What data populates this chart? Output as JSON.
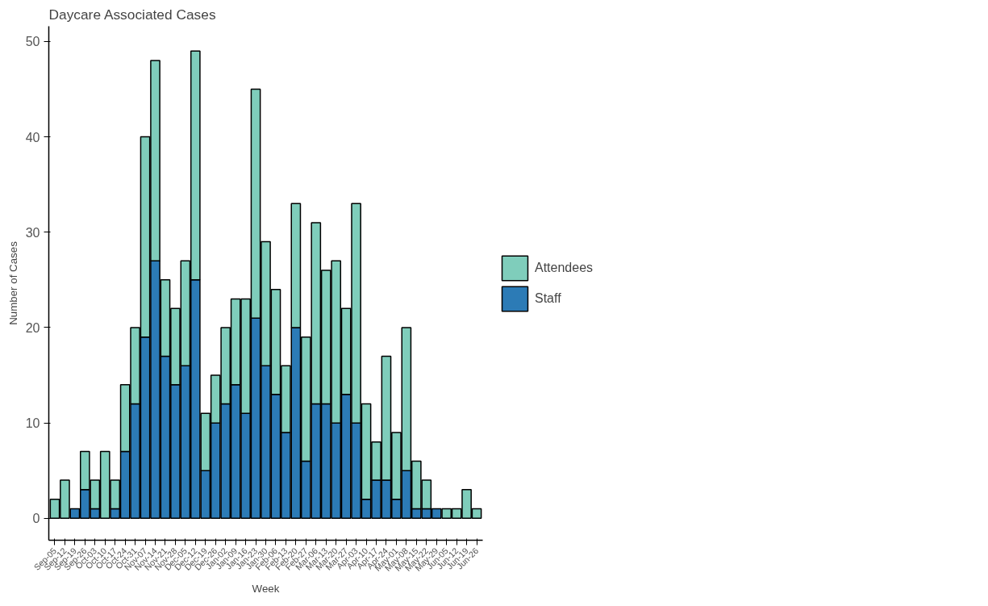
{
  "chart_data": {
    "type": "bar",
    "title": "Daycare Associated Cases",
    "xlabel": "Week",
    "ylabel": "Number of Cases",
    "categories": [
      "Sep-05",
      "Sep-12",
      "Sep-19",
      "Sep-26",
      "Oct-03",
      "Oct-10",
      "Oct-17",
      "Oct-24",
      "Oct-31",
      "Nov-07",
      "Nov-14",
      "Nov-21",
      "Nov-28",
      "Dec-05",
      "Dec-12",
      "Dec-19",
      "Dec-26",
      "Jan-02",
      "Jan-09",
      "Jan-16",
      "Jan-23",
      "Jan-30",
      "Feb-06",
      "Feb-13",
      "Feb-20",
      "Feb-27",
      "Mar-06",
      "Mar-13",
      "Mar-20",
      "Mar-27",
      "Apr-03",
      "Apr-10",
      "Apr-17",
      "Apr-24",
      "May-01",
      "May-08",
      "May-15",
      "May-22",
      "May-29",
      "Jun-05",
      "Jun-12",
      "Jun-19",
      "Jun-26"
    ],
    "stacked": true,
    "series": [
      {
        "name": "Staff",
        "color": "#2c7bb6",
        "values": [
          0,
          0,
          1,
          3,
          1,
          0,
          1,
          7,
          12,
          19,
          27,
          17,
          14,
          16,
          25,
          5,
          10,
          12,
          14,
          11,
          21,
          16,
          13,
          9,
          20,
          6,
          12,
          12,
          10,
          13,
          10,
          2,
          4,
          4,
          2,
          5,
          1,
          1,
          1,
          0,
          0,
          0,
          0
        ]
      },
      {
        "name": "Attendees",
        "color": "#7fcdbb",
        "values": [
          2,
          4,
          0,
          4,
          3,
          7,
          3,
          7,
          8,
          21,
          21,
          8,
          8,
          11,
          24,
          6,
          5,
          8,
          9,
          12,
          24,
          13,
          11,
          7,
          13,
          13,
          19,
          14,
          17,
          9,
          23,
          10,
          4,
          13,
          7,
          15,
          5,
          3,
          0,
          1,
          1,
          3,
          1
        ]
      }
    ],
    "ylim": [
      -2.3,
      51.6
    ],
    "yticks": [
      0,
      10,
      20,
      30,
      40,
      50
    ],
    "grid": false,
    "legend": "right"
  }
}
